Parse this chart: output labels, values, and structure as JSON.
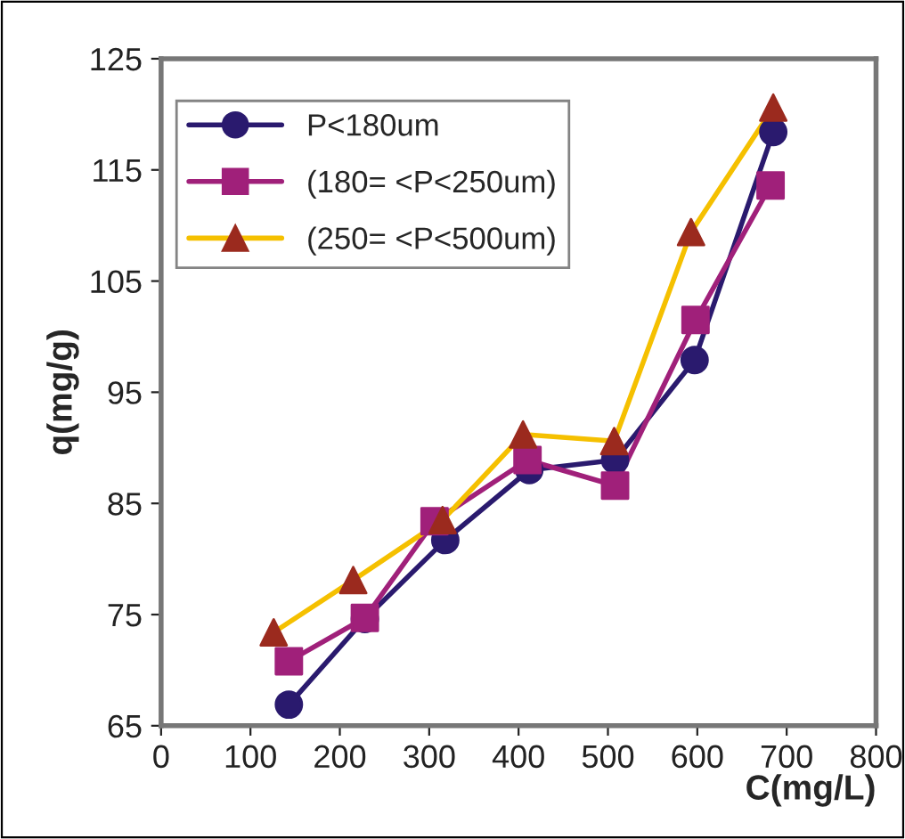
{
  "chart_data": {
    "type": "line",
    "xlabel": "C(mg/L)",
    "ylabel": "q(mg/g)",
    "xlim": [
      0,
      800
    ],
    "xticks": [
      0,
      100,
      200,
      300,
      400,
      500,
      600,
      700,
      800
    ],
    "ylim": [
      65,
      125
    ],
    "yticks": [
      65,
      75,
      85,
      95,
      105,
      115,
      125
    ],
    "grid": false,
    "legend": "top left",
    "series": [
      {
        "name": "P<180um",
        "color": "#2a1a6e",
        "marker": "circle",
        "x": [
          143,
          228,
          318,
          412,
          508,
          597,
          685
        ],
        "values": [
          66.9,
          74.6,
          81.7,
          88.0,
          88.9,
          97.9,
          118.4
        ]
      },
      {
        "name": "(180= <P<250um)",
        "color": "#a0207a",
        "marker": "square",
        "x": [
          143,
          228,
          306,
          410,
          508,
          598,
          682
        ],
        "values": [
          70.8,
          74.7,
          83.4,
          88.9,
          86.6,
          101.5,
          113.6
        ]
      },
      {
        "name": "(250= <P<500um)",
        "color": "#f5c000",
        "marker": "triangle",
        "colors": [
          "#9b2a1e",
          "#9b2a1e",
          "#9b2a1e",
          "#9b2a1e",
          "#9b2a1e",
          "#9b2a1e",
          "#9b2a1e"
        ],
        "x": [
          126,
          215,
          315,
          405,
          507,
          593,
          685
        ],
        "values": [
          73.4,
          78.1,
          83.5,
          91.2,
          90.6,
          109.4,
          120.6
        ]
      }
    ]
  }
}
